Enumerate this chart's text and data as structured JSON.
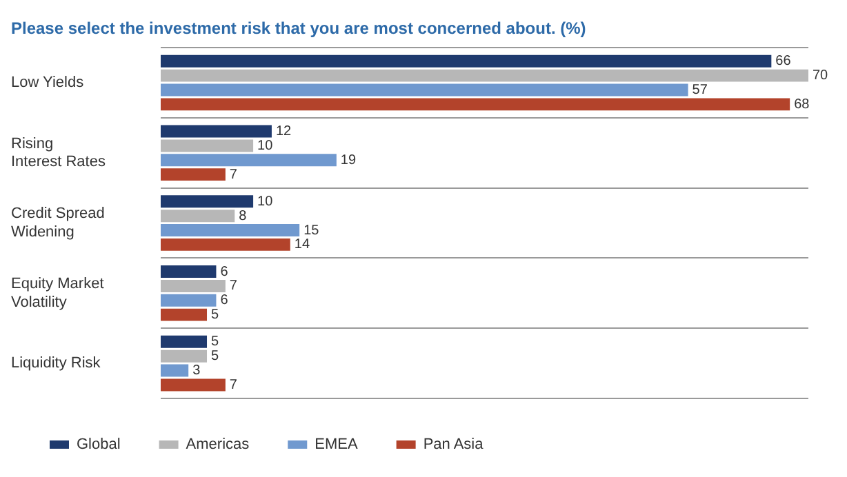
{
  "chart_data": {
    "type": "bar",
    "orientation": "horizontal",
    "title": "Please select the investment risk that you are most concerned about. (%)",
    "categories": [
      "Low Yields",
      "Rising\nInterest Rates",
      "Credit Spread\nWidening",
      "Equity Market\nVolatility",
      "Liquidity Risk"
    ],
    "series": [
      {
        "name": "Global",
        "color": "#1f3a6e",
        "values": [
          66,
          12,
          10,
          6,
          5
        ]
      },
      {
        "name": "Americas",
        "color": "#b7b7b7",
        "values": [
          70,
          10,
          8,
          7,
          5
        ]
      },
      {
        "name": "EMEA",
        "color": "#7099cf",
        "values": [
          57,
          19,
          15,
          6,
          3
        ]
      },
      {
        "name": "Pan Asia",
        "color": "#b3432b",
        "values": [
          68,
          7,
          14,
          5,
          7
        ]
      }
    ],
    "data_labels": true,
    "grid": "y",
    "legend": "bottom",
    "tick_labels": "y"
  }
}
